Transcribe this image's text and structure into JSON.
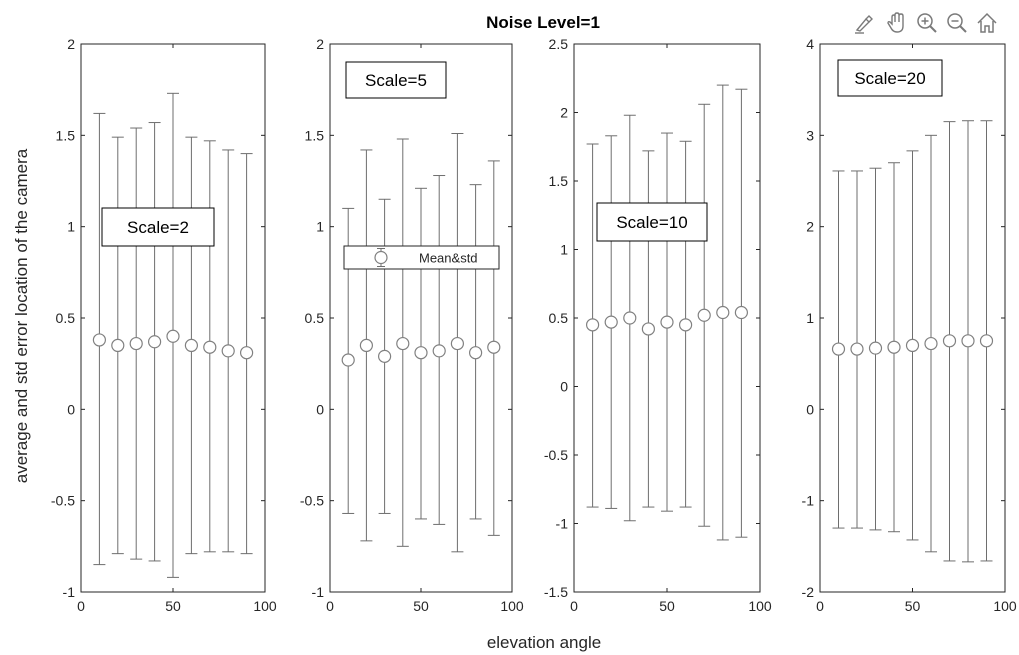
{
  "figure_title": "Noise Level=1",
  "shared_xlabel": "elevation angle",
  "shared_ylabel": "average and std error location of the camera",
  "legend_label": "Mean&std",
  "toolbar": {
    "icons": [
      "brush-icon",
      "pan-hand-icon",
      "zoom-in-icon",
      "zoom-out-icon",
      "home-icon"
    ]
  },
  "colors": {
    "marker": "#808080",
    "errorbar": "#6e6e6e",
    "axis": "#262626",
    "text": "#262626"
  },
  "chart_data": [
    {
      "type": "scatter",
      "title": "",
      "annotation": "Scale=2",
      "xlim": [
        0,
        100
      ],
      "xticks": [
        0,
        50,
        100
      ],
      "xtick_labels": [
        "0",
        "50",
        "100"
      ],
      "ylim": [
        -1,
        2
      ],
      "yticks": [
        -1,
        -0.5,
        0,
        0.5,
        1,
        1.5,
        2
      ],
      "ytick_labels": [
        "-1",
        "-0.5",
        "0",
        "0.5",
        "1",
        "1.5",
        "2"
      ],
      "grid": false,
      "series": [
        {
          "x": [
            10,
            20,
            30,
            40,
            50,
            60,
            70,
            80,
            90
          ],
          "mean": [
            0.38,
            0.35,
            0.36,
            0.37,
            0.4,
            0.35,
            0.34,
            0.32,
            0.31
          ],
          "upper": [
            1.62,
            1.49,
            1.54,
            1.57,
            1.73,
            1.49,
            1.47,
            1.42,
            1.4
          ],
          "lower": [
            -0.85,
            -0.79,
            -0.82,
            -0.83,
            -0.92,
            -0.79,
            -0.78,
            -0.78,
            -0.79
          ]
        }
      ]
    },
    {
      "type": "scatter",
      "title": "",
      "annotation": "Scale=5",
      "legend": "Mean&std",
      "xlim": [
        0,
        100
      ],
      "xticks": [
        0,
        50,
        100
      ],
      "xtick_labels": [
        "0",
        "50",
        "100"
      ],
      "ylim": [
        -1,
        2
      ],
      "yticks": [
        -1,
        -0.5,
        0,
        0.5,
        1,
        1.5,
        2
      ],
      "ytick_labels": [
        "-1",
        "-0.5",
        "0",
        "0.5",
        "1",
        "1.5",
        "2"
      ],
      "grid": false,
      "series": [
        {
          "x": [
            10,
            20,
            30,
            40,
            50,
            60,
            70,
            80,
            90
          ],
          "mean": [
            0.27,
            0.35,
            0.29,
            0.36,
            0.31,
            0.32,
            0.36,
            0.31,
            0.34
          ],
          "upper": [
            1.1,
            1.42,
            1.15,
            1.48,
            1.21,
            1.28,
            1.51,
            1.23,
            1.36
          ],
          "lower": [
            -0.57,
            -0.72,
            -0.57,
            -0.75,
            -0.6,
            -0.63,
            -0.78,
            -0.6,
            -0.69
          ]
        }
      ]
    },
    {
      "type": "scatter",
      "title": "",
      "annotation": "Scale=10",
      "xlim": [
        0,
        100
      ],
      "xticks": [
        0,
        50,
        100
      ],
      "xtick_labels": [
        "0",
        "50",
        "100"
      ],
      "ylim": [
        -1.5,
        2.5
      ],
      "yticks": [
        -1.5,
        -1,
        -0.5,
        0,
        0.5,
        1,
        1.5,
        2,
        2.5
      ],
      "ytick_labels": [
        "-1.5",
        "-1",
        "-0.5",
        "0",
        "0.5",
        "1",
        "1.5",
        "2",
        "2.5"
      ],
      "grid": false,
      "series": [
        {
          "x": [
            10,
            20,
            30,
            40,
            50,
            60,
            70,
            80,
            90
          ],
          "mean": [
            0.45,
            0.47,
            0.5,
            0.42,
            0.47,
            0.45,
            0.52,
            0.54,
            0.54
          ],
          "upper": [
            1.77,
            1.83,
            1.98,
            1.72,
            1.85,
            1.79,
            2.06,
            2.2,
            2.17
          ],
          "lower": [
            -0.88,
            -0.89,
            -0.98,
            -0.88,
            -0.91,
            -0.88,
            -1.02,
            -1.12,
            -1.1
          ]
        }
      ]
    },
    {
      "type": "scatter",
      "title": "",
      "annotation": "Scale=20",
      "xlim": [
        0,
        100
      ],
      "xticks": [
        0,
        50,
        100
      ],
      "xtick_labels": [
        "0",
        "50",
        "100"
      ],
      "ylim": [
        -2,
        4
      ],
      "yticks": [
        -2,
        -1,
        0,
        1,
        2,
        3,
        4
      ],
      "ytick_labels": [
        "-2",
        "-1",
        "0",
        "1",
        "2",
        "3",
        "4"
      ],
      "grid": false,
      "series": [
        {
          "x": [
            10,
            20,
            30,
            40,
            50,
            60,
            70,
            80,
            90
          ],
          "mean": [
            0.66,
            0.66,
            0.67,
            0.68,
            0.7,
            0.72,
            0.75,
            0.75,
            0.75
          ],
          "upper": [
            2.61,
            2.61,
            2.64,
            2.7,
            2.83,
            3.0,
            3.15,
            3.16,
            3.16
          ],
          "lower": [
            -1.3,
            -1.3,
            -1.32,
            -1.34,
            -1.43,
            -1.56,
            -1.66,
            -1.67,
            -1.66
          ]
        }
      ]
    }
  ]
}
